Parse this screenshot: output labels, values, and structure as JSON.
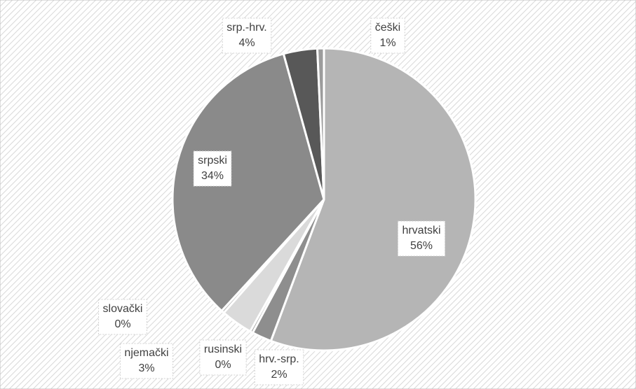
{
  "chart_data": {
    "type": "pie",
    "categories": [
      "hrvatski",
      "hrv.-srp.",
      "rusinski",
      "njemački",
      "slovački",
      "srpski",
      "srp.-hrv.",
      "češki"
    ],
    "values": [
      55.7,
      2.1,
      0.3,
      3.4,
      0.3,
      33.9,
      3.6,
      0.7
    ],
    "value_labels": [
      "56%",
      "2%",
      "0%",
      "3%",
      "0%",
      "34%",
      "4%",
      "1%"
    ],
    "colors": [
      "#b5b5b5",
      "#8e8e8e",
      "#9a9a9a",
      "#dadada",
      "#a8a8a8",
      "#8a8a8a",
      "#585858",
      "#9c9c9c"
    ]
  }
}
